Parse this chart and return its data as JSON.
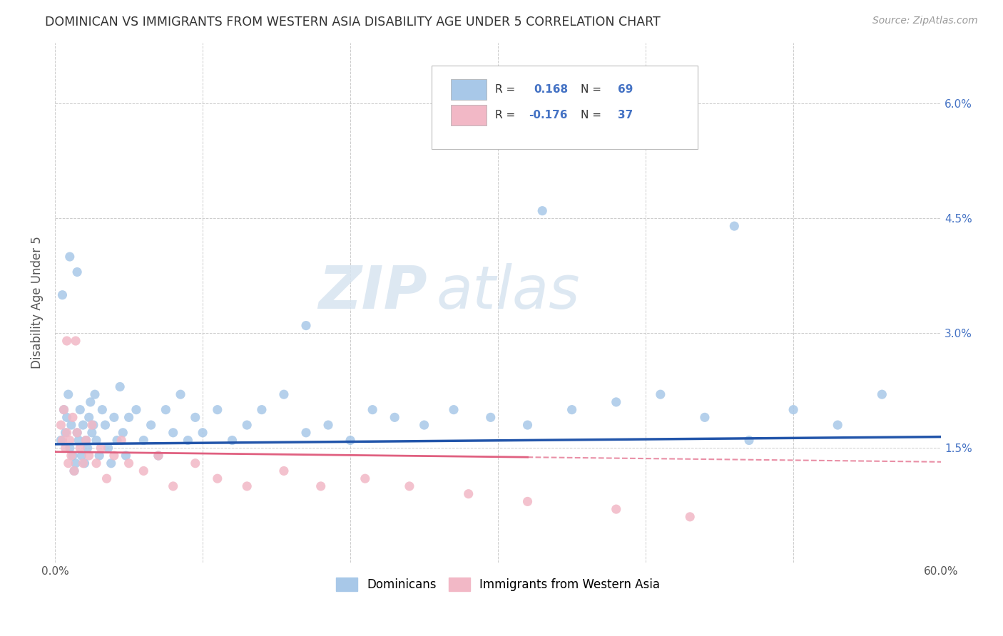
{
  "title": "DOMINICAN VS IMMIGRANTS FROM WESTERN ASIA DISABILITY AGE UNDER 5 CORRELATION CHART",
  "source": "Source: ZipAtlas.com",
  "ylabel": "Disability Age Under 5",
  "xlim": [
    0.0,
    0.6
  ],
  "ylim": [
    0.0,
    0.068
  ],
  "xtick_positions": [
    0.0,
    0.1,
    0.2,
    0.3,
    0.4,
    0.5,
    0.6
  ],
  "xticklabels": [
    "0.0%",
    "",
    "",
    "",
    "",
    "",
    "60.0%"
  ],
  "ytick_positions": [
    0.0,
    0.015,
    0.03,
    0.045,
    0.06
  ],
  "yticklabels_right": [
    "",
    "1.5%",
    "3.0%",
    "4.5%",
    "6.0%"
  ],
  "legend_bottom": "Dominicans",
  "legend_bottom2": "Immigrants from Western Asia",
  "color_dominican": "#a8c8e8",
  "color_western_asia": "#f2b8c6",
  "color_line_dominican": "#2255aa",
  "color_line_western_asia": "#e06080",
  "watermark_zip": "ZIP",
  "watermark_atlas": "atlas",
  "R1": 0.168,
  "N1": 69,
  "R2": -0.176,
  "N2": 37,
  "dom_intercept": 0.0155,
  "dom_slope": 0.0016,
  "wa_intercept": 0.0145,
  "wa_slope": -0.0022,
  "background_color": "#ffffff",
  "grid_color": "#cccccc",
  "title_color": "#333333",
  "source_color": "#999999",
  "tick_color": "#4472c4",
  "legend_r_color": "#333333",
  "legend_val_color": "#4472c4"
}
